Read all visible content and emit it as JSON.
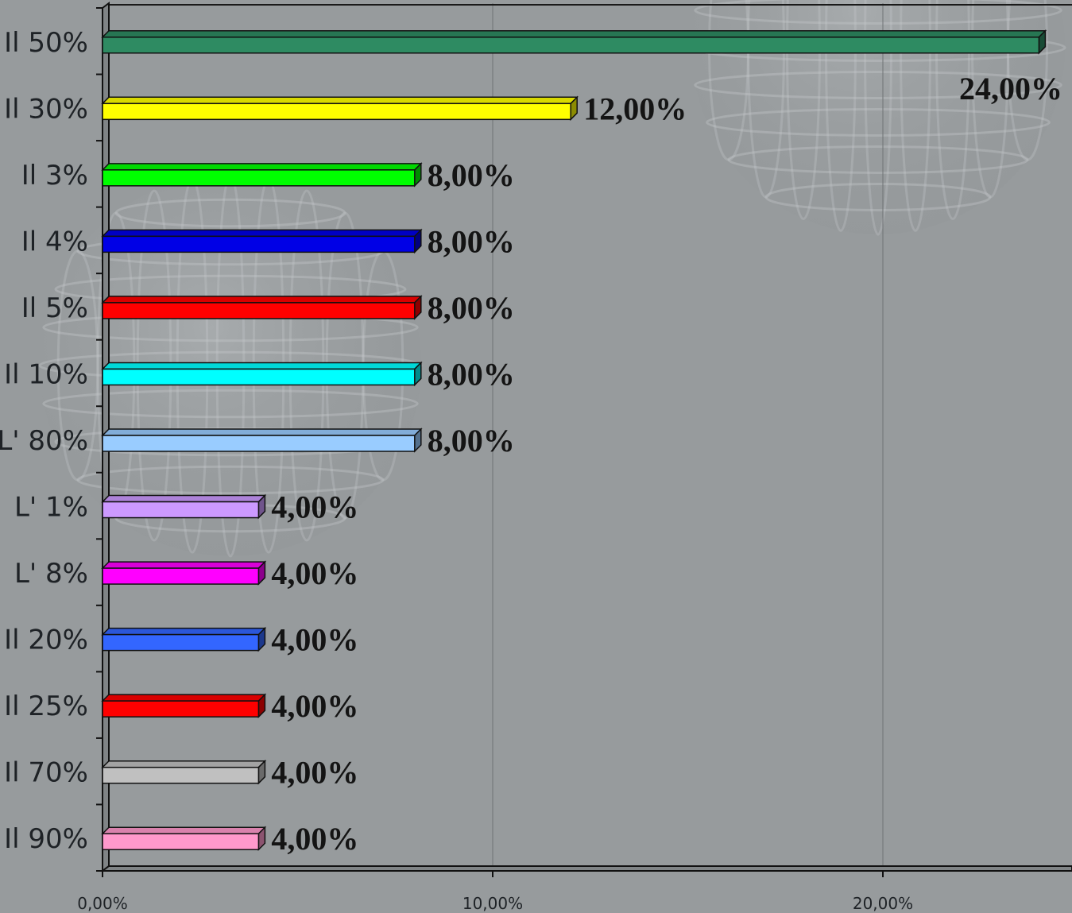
{
  "chart_data": {
    "type": "bar",
    "orientation": "horizontal",
    "categories": [
      "Il 50%",
      "Il 30%",
      "Il 3%",
      "Il 4%",
      "Il 5%",
      "Il 10%",
      "L' 80%",
      "L' 1%",
      "L' 8%",
      "Il 20%",
      "Il 25%",
      "Il 70%",
      "Il 90%"
    ],
    "values": [
      24.0,
      12.0,
      8.0,
      8.0,
      8.0,
      8.0,
      8.0,
      4.0,
      4.0,
      4.0,
      4.0,
      4.0,
      4.0
    ],
    "data_labels": [
      "24,00%",
      "12,00%",
      "8,00%",
      "8,00%",
      "8,00%",
      "8,00%",
      "8,00%",
      "4,00%",
      "4,00%",
      "4,00%",
      "4,00%",
      "4,00%",
      "4,00%"
    ],
    "colors": [
      "#2e8b62",
      "#ffff00",
      "#00ff00",
      "#0000e6",
      "#ff0000",
      "#00ffff",
      "#99ccff",
      "#cc99ff",
      "#ff00ff",
      "#3366ff",
      "#ff0000",
      "#c0c0c0",
      "#ff99cc"
    ],
    "x_ticks": [
      "0,00%",
      "10,00%",
      "20,00%"
    ],
    "xlim": [
      0,
      25
    ],
    "grid": true,
    "legend": "none",
    "background_color": "#979b9d",
    "title": "",
    "xlabel": "",
    "ylabel": ""
  }
}
